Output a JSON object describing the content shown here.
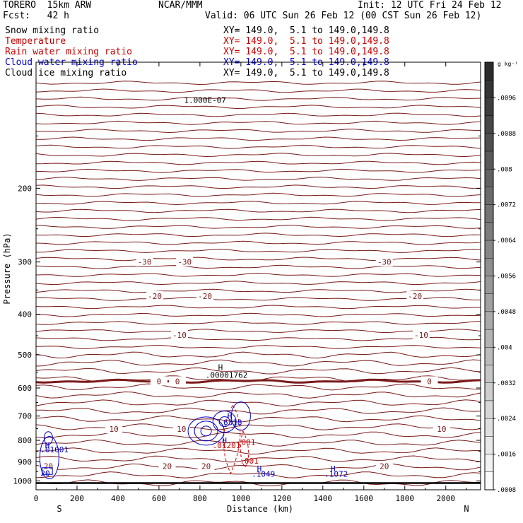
{
  "header": {
    "model": "TORERO  15km ARW",
    "center": "NCAR/MMM",
    "init": "Init: 12 UTC Fri 24 Feb 12",
    "fcst": "Fcst:   42 h",
    "valid": "Valid: 06 UTC Sun 26 Feb 12 (00 CST Sun 26 Feb 12)"
  },
  "fields": [
    {
      "name": "Snow mixing ratio",
      "xy": "XY= 149.0,  5.1 to 149.0,149.8",
      "color": "#000000"
    },
    {
      "name": "Temperature",
      "xy": "XY= 149.0,  5.1 to 149.0,149.8",
      "color": "#c80000"
    },
    {
      "name": "Rain water mixing ratio",
      "xy": "XY= 149.0,  5.1 to 149.0,149.8",
      "color": "#c80000"
    },
    {
      "name": "Cloud water mixing ratio",
      "xy": "XY= 149.0,  5.1 to 149.0,149.8",
      "color": "#0000c8"
    },
    {
      "name": "Cloud ice mixing ratio",
      "xy": "XY= 149.0,  5.1 to 149.0,149.8",
      "color": "#000000"
    }
  ],
  "chart_data": {
    "type": "contour",
    "xlabel": "Distance (km)",
    "ylabel": "Pressure (hPa)",
    "xlim": [
      0,
      2170
    ],
    "ylim": [
      1050,
      100
    ],
    "y_scale": "log",
    "x_ticks": [
      0,
      200,
      400,
      600,
      800,
      1000,
      1200,
      1400,
      1600,
      1800,
      2000
    ],
    "y_ticks": [
      200,
      300,
      400,
      500,
      600,
      700,
      800,
      900,
      1000
    ],
    "x_end_labels": {
      "left": "S",
      "right": "N"
    },
    "temperature_contours": [
      {
        "label": "-30",
        "label_x": [
          530,
          725,
          1700
        ]
      },
      {
        "label": "-20",
        "label_x": [
          580,
          825,
          1850
        ]
      },
      {
        "label": "-10",
        "label_x": [
          700,
          1880
        ]
      },
      {
        "label": "0",
        "label_x": [
          600,
          690,
          1920
        ]
      },
      {
        "label": "10",
        "label_x": [
          380,
          710,
          1980
        ]
      },
      {
        "label": "20",
        "label_x": [
          60,
          640,
          830,
          1700
        ]
      }
    ],
    "annotations": [
      {
        "text": "H",
        "x": 900,
        "p": 535
      },
      {
        "text": ".00001762",
        "x": 930,
        "p": 558
      },
      {
        "text": "H",
        "x": 945,
        "p": 700
      },
      {
        "text": "6318",
        "x": 960,
        "p": 725
      },
      {
        "text": "H",
        "x": 920,
        "p": 800
      },
      {
        "text": ".01201",
        "x": 930,
        "p": 822
      },
      {
        "text": ".001",
        "x": 1025,
        "p": 808
      },
      {
        "text": ".001",
        "x": 1040,
        "p": 895
      },
      {
        "text": "H",
        "x": 55,
        "p": 822
      },
      {
        "text": ".01001",
        "x": 90,
        "p": 842
      },
      {
        "text": "H",
        "x": 1090,
        "p": 935
      },
      {
        "text": ".1049",
        "x": 1110,
        "p": 962
      },
      {
        "text": "H",
        "x": 1450,
        "p": 935
      },
      {
        "text": ".1072",
        "x": 1465,
        "p": 962
      },
      {
        "text": "20",
        "x": 45,
        "p": 958
      },
      {
        "text": "1.000E-07",
        "x": 825,
        "p": 123
      }
    ],
    "colorbar": {
      "unit": "g kg⁻¹",
      "labels": [
        ".0096",
        ".0088",
        ".008",
        ".0072",
        ".0064",
        ".0056",
        ".0048",
        ".004",
        ".0032",
        ".0024",
        ".0016",
        ".0008"
      ],
      "levels": 24
    }
  }
}
